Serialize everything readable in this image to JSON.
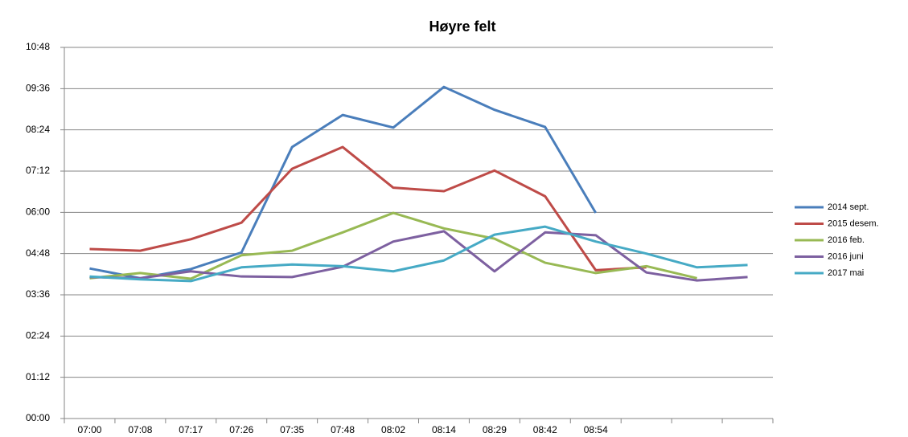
{
  "chart_data": {
    "type": "line",
    "title": "Høyre felt",
    "categories": [
      "07:00",
      "07:08",
      "07:17",
      "07:26",
      "07:35",
      "07:48",
      "08:02",
      "08:14",
      "08:29",
      "08:42",
      "08:54",
      null,
      null,
      null
    ],
    "series": [
      {
        "name": "2014 sept.",
        "color": "#4a7ebb",
        "values": [
          262,
          245,
          261,
          290,
          474,
          530,
          508,
          579,
          539,
          509,
          359,
          null,
          null,
          null
        ]
      },
      {
        "name": "2015 desem.",
        "color": "#be4b48",
        "values": [
          296,
          293,
          313,
          342,
          436,
          474,
          403,
          397,
          433,
          388,
          259,
          264,
          null,
          null
        ]
      },
      {
        "name": "2016 feb.",
        "color": "#98b954",
        "values": [
          245,
          254,
          244,
          285,
          293,
          325,
          359,
          332,
          314,
          272,
          254,
          266,
          245,
          null
        ]
      },
      {
        "name": "2016 juni",
        "color": "#7d60a0",
        "values": [
          247,
          245,
          257,
          248,
          247,
          265,
          309,
          327,
          257,
          325,
          320,
          255,
          241,
          247
        ]
      },
      {
        "name": "2017 mai",
        "color": "#46aac5",
        "values": [
          248,
          243,
          240,
          264,
          269,
          266,
          257,
          276,
          321,
          335,
          309,
          288,
          264,
          268
        ]
      }
    ],
    "ylim": [
      0,
      648
    ],
    "yticks": [
      {
        "value": 0,
        "label": "00:00"
      },
      {
        "value": 72,
        "label": "01:12"
      },
      {
        "value": 144,
        "label": "02:24"
      },
      {
        "value": 216,
        "label": "03:36"
      },
      {
        "value": 288,
        "label": "04:48"
      },
      {
        "value": 360,
        "label": "06:00"
      },
      {
        "value": 432,
        "label": "07:12"
      },
      {
        "value": 504,
        "label": "08:24"
      },
      {
        "value": 576,
        "label": "09:36"
      },
      {
        "value": 648,
        "label": "10:48"
      }
    ],
    "grid": true
  }
}
